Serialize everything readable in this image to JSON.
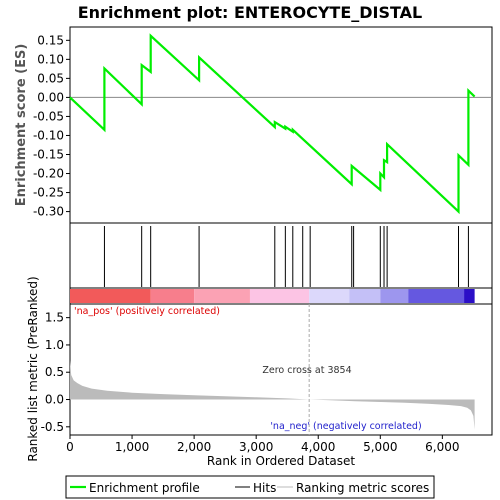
{
  "chart_data": [
    {
      "type": "line",
      "title": "Enrichment plot: ENTEROCYTE_DISTAL",
      "ylabel": "Enrichment score (ES)",
      "xlim": [
        0,
        6800
      ],
      "ylim": [
        -0.33,
        0.185
      ],
      "y_ticks": [
        0.15,
        0.1,
        0.05,
        0.0,
        -0.05,
        -0.1,
        -0.15,
        -0.2,
        -0.25,
        -0.3
      ],
      "y_tick_labels": [
        "0.15",
        "0.10",
        "0.05",
        "0.00",
        "-0.05",
        "-0.10",
        "-0.15",
        "-0.20",
        "-0.25",
        "-0.30"
      ],
      "grid": false,
      "series": [
        {
          "name": "Enrichment profile",
          "color": "#00ee00",
          "x": [
            0,
            555,
            555,
            1155,
            1155,
            1300,
            1300,
            2080,
            2080,
            3300,
            3300,
            3470,
            3470,
            3590,
            3590,
            4540,
            4540,
            5000,
            5000,
            5060,
            5060,
            5110,
            5110,
            6260,
            6260,
            6420,
            6420,
            6520
          ],
          "y": [
            0.0,
            -0.085,
            0.076,
            -0.018,
            0.085,
            0.067,
            0.162,
            0.045,
            0.105,
            -0.078,
            -0.065,
            -0.082,
            -0.077,
            -0.09,
            -0.085,
            -0.228,
            -0.18,
            -0.243,
            -0.2,
            -0.21,
            -0.165,
            -0.17,
            -0.123,
            -0.3,
            -0.152,
            -0.177,
            0.018,
            0.002
          ]
        }
      ]
    },
    {
      "type": "scatter",
      "title": "",
      "xlim": [
        0,
        6800
      ],
      "hits": [
        555,
        1155,
        1300,
        2080,
        3300,
        3470,
        3590,
        3750,
        3870,
        4540,
        4570,
        5000,
        5060,
        5110,
        6260,
        6420
      ]
    },
    {
      "type": "heatmap",
      "xlim": [
        0,
        6800
      ],
      "segments": [
        {
          "start": 0,
          "end": 1300,
          "color": "#f25a5a"
        },
        {
          "start": 1300,
          "end": 2000,
          "color": "#f77e8c"
        },
        {
          "start": 2000,
          "end": 2900,
          "color": "#fba2b4"
        },
        {
          "start": 2900,
          "end": 3854,
          "color": "#fcc4e4"
        },
        {
          "start": 3854,
          "end": 4500,
          "color": "#dcd8fb"
        },
        {
          "start": 4500,
          "end": 5000,
          "color": "#c4c0f7"
        },
        {
          "start": 5000,
          "end": 5450,
          "color": "#9d96ee"
        },
        {
          "start": 5450,
          "end": 6350,
          "color": "#6558e0"
        },
        {
          "start": 6350,
          "end": 6520,
          "color": "#2b0fc7"
        }
      ],
      "pos_label": "'na_pos' (positively correlated)",
      "neg_label": "'na_neg' (negatively correlated)"
    },
    {
      "type": "area",
      "title": "",
      "xlabel": "Rank in Ordered Dataset",
      "ylabel": "Ranked list metric (PreRanked)",
      "xlim": [
        0,
        6800
      ],
      "ylim": [
        -0.65,
        1.75
      ],
      "x_ticks": [
        0,
        1000,
        2000,
        3000,
        4000,
        5000,
        6000
      ],
      "x_tick_labels": [
        "0",
        "1,000",
        "2,000",
        "3,000",
        "4,000",
        "5,000",
        "6,000"
      ],
      "y_ticks": [
        1.5,
        1.0,
        0.5,
        0.0,
        -0.5
      ],
      "y_tick_labels": [
        "1.5",
        "1.0",
        "0.5",
        "0.0",
        "-0.5"
      ],
      "zero_cross": 3854,
      "zero_cross_label": "Zero cross at 3854",
      "x": [
        0,
        20,
        60,
        120,
        200,
        350,
        600,
        1000,
        1500,
        2000,
        2500,
        3000,
        3500,
        3854,
        4200,
        4600,
        5000,
        5400,
        5800,
        6100,
        6300,
        6400,
        6460,
        6500,
        6520
      ],
      "y": [
        0.72,
        0.45,
        0.35,
        0.3,
        0.25,
        0.2,
        0.16,
        0.125,
        0.1,
        0.08,
        0.06,
        0.04,
        0.02,
        0.0,
        -0.015,
        -0.03,
        -0.045,
        -0.06,
        -0.08,
        -0.1,
        -0.12,
        -0.15,
        -0.2,
        -0.3,
        -0.55
      ],
      "fill_color": "#bbbbbb"
    }
  ],
  "legend": {
    "items": [
      {
        "label": "Enrichment profile",
        "color": "#00ee00"
      },
      {
        "label": "Hits",
        "color": "#000000"
      },
      {
        "label": "Ranking metric scores",
        "color": "#bbbbbb"
      }
    ]
  }
}
